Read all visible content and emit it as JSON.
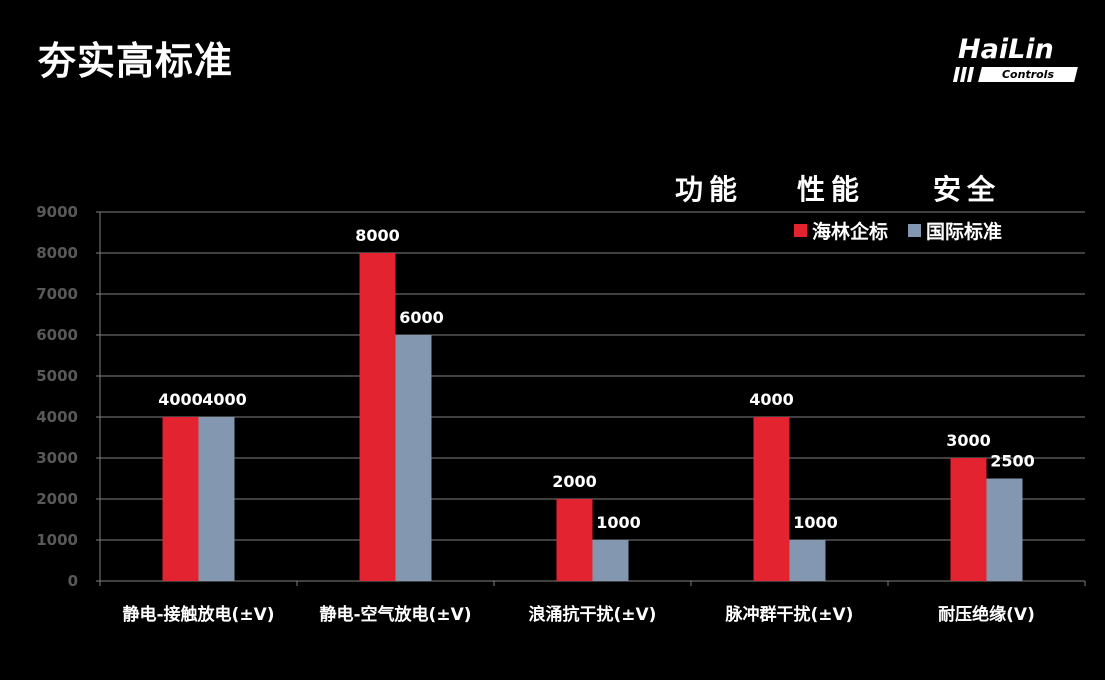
{
  "title": "夯实高标准",
  "logo": {
    "brand": "HaiLin",
    "sub": "Controls"
  },
  "headings": [
    "功能",
    "性能",
    "安全"
  ],
  "colors": {
    "background": "#000000",
    "series1": "#e32430",
    "series2": "#8497b0",
    "grid": "#808080",
    "tick": "#595959"
  },
  "chart_data": {
    "type": "bar",
    "categories": [
      "静电-接触放电(±V)",
      "静电-空气放电(±V)",
      "浪涌抗干扰(±V)",
      "脉冲群干扰(±V)",
      "耐压绝缘(V)"
    ],
    "series": [
      {
        "name": "海林企标",
        "values": [
          4000,
          8000,
          2000,
          4000,
          3000
        ]
      },
      {
        "name": "国际标准",
        "values": [
          4000,
          6000,
          1000,
          1000,
          2500
        ]
      }
    ],
    "ylim": [
      0,
      9000
    ],
    "yticks": [
      0,
      1000,
      2000,
      3000,
      4000,
      5000,
      6000,
      7000,
      8000,
      9000
    ],
    "grid": true,
    "legend_position": "top-right",
    "data_labels": true
  }
}
